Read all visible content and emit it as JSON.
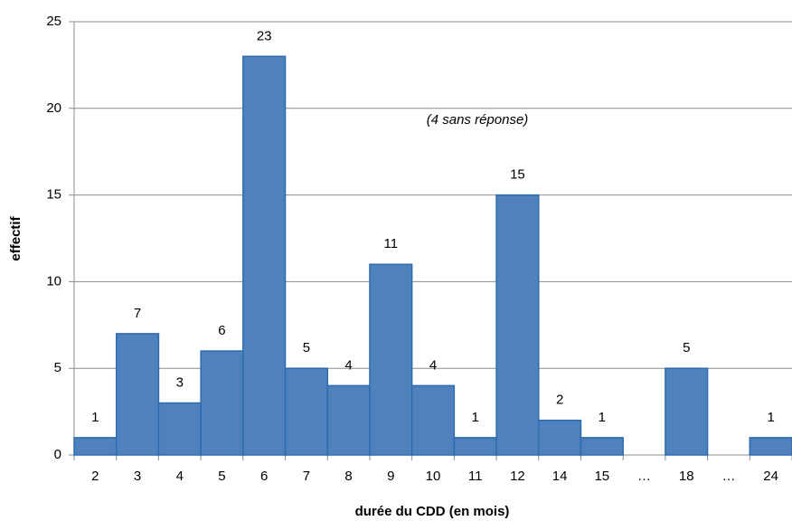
{
  "chart_data": {
    "type": "bar",
    "categories": [
      "2",
      "3",
      "4",
      "5",
      "6",
      "7",
      "8",
      "9",
      "10",
      "11",
      "12",
      "14",
      "15",
      "…",
      "18",
      "…",
      "24"
    ],
    "values": [
      1,
      7,
      3,
      6,
      23,
      5,
      4,
      11,
      4,
      1,
      15,
      2,
      1,
      null,
      5,
      null,
      1
    ],
    "color": "#4f81bd",
    "xlabel": "durée du CDD (en mois)",
    "ylabel": "effectif",
    "annotation": "(4 sans réponse)",
    "ylim": [
      0,
      25
    ],
    "yticks": [
      0,
      5,
      10,
      15,
      20,
      25
    ],
    "grid": true
  }
}
